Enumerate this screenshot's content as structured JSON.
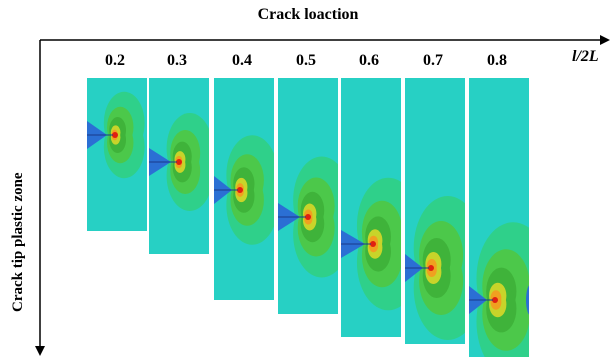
{
  "title": "Crack loaction",
  "y_axis_label": "Crack tip plastic zone",
  "x_axis_unit": "l/2L",
  "locations": [
    "0.2",
    "0.3",
    "0.4",
    "0.5",
    "0.6",
    "0.7",
    "0.8"
  ],
  "colors": {
    "background_field": "#27d0c4",
    "crack_wedge": "#2b6fd4",
    "zone_outer": "#2fd08a",
    "zone_mid": "#4cc84a",
    "zone_inner": "#3fb33a",
    "zone_yellow": "#c8d42a",
    "zone_orange": "#f0a020",
    "zone_core": "#e02010"
  }
}
